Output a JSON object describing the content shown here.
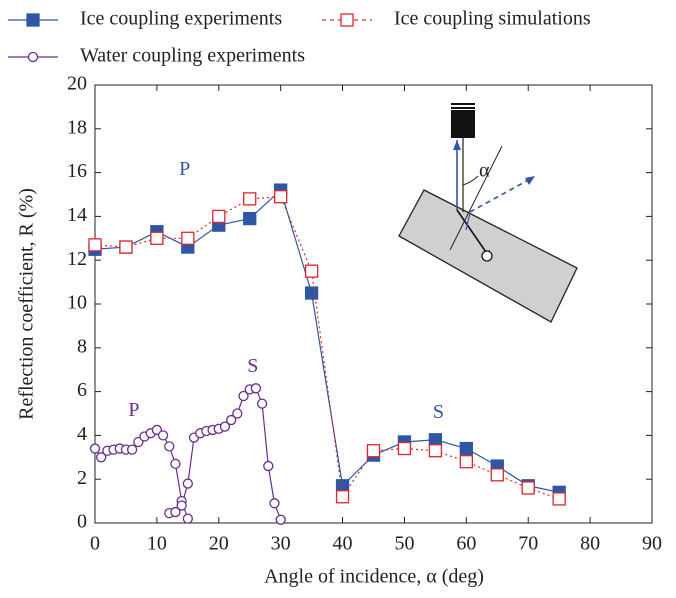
{
  "chart_data": {
    "type": "line",
    "xlabel": "Angle of incidence, α (deg)",
    "ylabel": "Reflection coefficient, R (%)",
    "xlim": [
      0,
      90
    ],
    "xticks": [
      0,
      10,
      20,
      30,
      40,
      50,
      60,
      70,
      80,
      90
    ],
    "ylim": [
      0,
      20
    ],
    "yticks": [
      0,
      2,
      4,
      6,
      8,
      10,
      12,
      14,
      16,
      18,
      20
    ],
    "grid": false,
    "series": [
      {
        "name": "Ice coupling experiments",
        "color": "#2f56a6",
        "marker": "square",
        "filled": true,
        "dashed": false,
        "x": [
          0,
          5,
          10,
          15,
          20,
          25,
          30,
          35,
          40,
          45,
          50,
          55,
          60,
          65,
          70,
          75
        ],
        "values": [
          12.5,
          12.6,
          13.3,
          12.6,
          13.6,
          13.9,
          15.2,
          10.5,
          1.7,
          3.1,
          3.7,
          3.8,
          3.4,
          2.6,
          1.7,
          1.4
        ]
      },
      {
        "name": "Ice coupling simulations",
        "color": "#e0262b",
        "marker": "square",
        "filled": false,
        "dashed": true,
        "x": [
          0,
          5,
          10,
          15,
          20,
          25,
          30,
          35,
          40,
          45,
          50,
          55,
          60,
          65,
          70,
          75
        ],
        "values": [
          12.7,
          12.6,
          13.0,
          13.0,
          14.0,
          14.8,
          14.9,
          11.5,
          1.2,
          3.3,
          3.4,
          3.3,
          2.8,
          2.2,
          1.6,
          1.1
        ]
      },
      {
        "name": "Water coupling experiments",
        "color": "#6a2c91",
        "marker": "circle",
        "filled": false,
        "dashed": false,
        "x": [
          0,
          1,
          2,
          3,
          4,
          5,
          6,
          7,
          8,
          9,
          10,
          11,
          12,
          13,
          14,
          15,
          null,
          12,
          13,
          14,
          15,
          16,
          17,
          18,
          19,
          20,
          21,
          22,
          23,
          24,
          25,
          26,
          27,
          28,
          29,
          30
        ],
        "values": [
          3.4,
          3.0,
          3.3,
          3.35,
          3.4,
          3.35,
          3.35,
          3.7,
          3.95,
          4.1,
          4.25,
          4.0,
          3.5,
          2.7,
          1.0,
          0.2,
          null,
          0.45,
          0.5,
          0.8,
          1.8,
          3.9,
          4.1,
          4.2,
          4.25,
          4.3,
          4.4,
          4.7,
          5.0,
          5.8,
          6.1,
          6.15,
          5.45,
          2.6,
          0.9,
          0.15
        ]
      }
    ],
    "annotations": [
      {
        "text": "P",
        "x": 14.5,
        "y": 16.1,
        "color": "#2f56a6"
      },
      {
        "text": "S",
        "x": 25.5,
        "y": 7.1,
        "color": "#6a2c91"
      },
      {
        "text": "P",
        "x": 6.3,
        "y": 5.1,
        "color": "#6a2c91"
      },
      {
        "text": "S",
        "x": 55.5,
        "y": 5.0,
        "color": "#2f56a6"
      }
    ],
    "inset_label": "α"
  }
}
